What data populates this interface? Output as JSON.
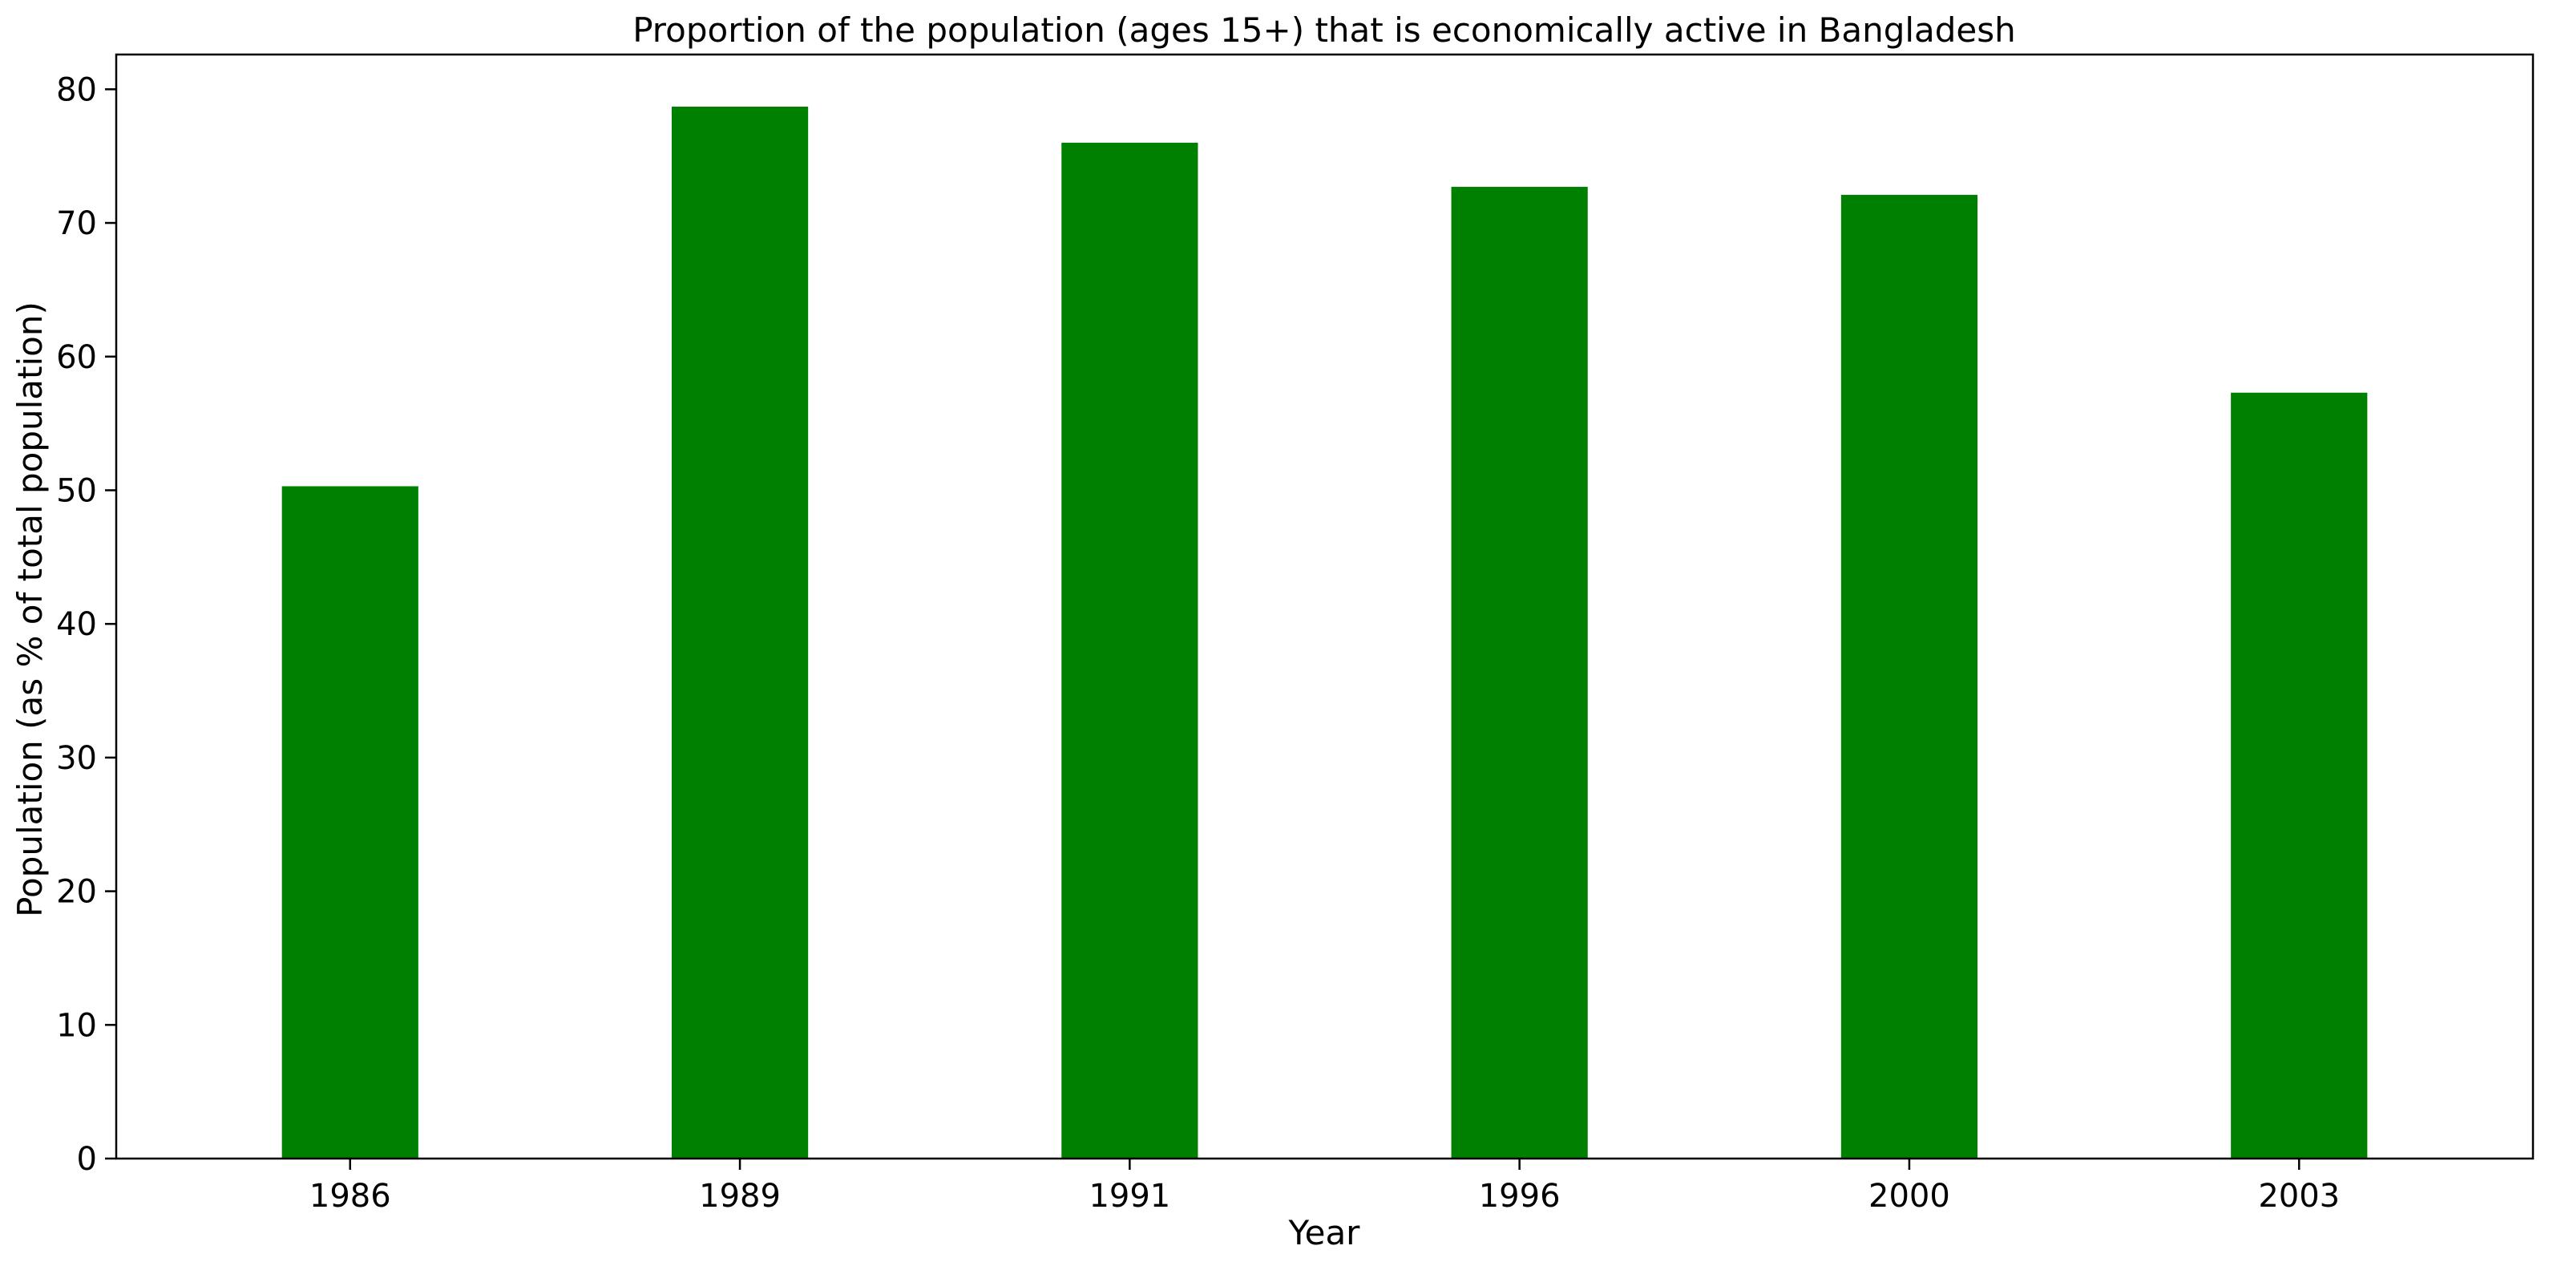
{
  "chart_data": {
    "type": "bar",
    "title": "Proportion of the population (ages 15+) that is economically active in Bangladesh",
    "xlabel": "Year",
    "ylabel": "Population (as % of total population)",
    "categories": [
      "1986",
      "1989",
      "1991",
      "1996",
      "2000",
      "2003"
    ],
    "values": [
      50.3,
      78.7,
      76.0,
      72.7,
      72.1,
      57.3
    ],
    "ylim": [
      0,
      82.6
    ],
    "yticks": [
      0,
      10,
      20,
      30,
      40,
      50,
      60,
      70,
      80
    ],
    "grid": false,
    "legend": "none",
    "bar_color": "#008000"
  }
}
